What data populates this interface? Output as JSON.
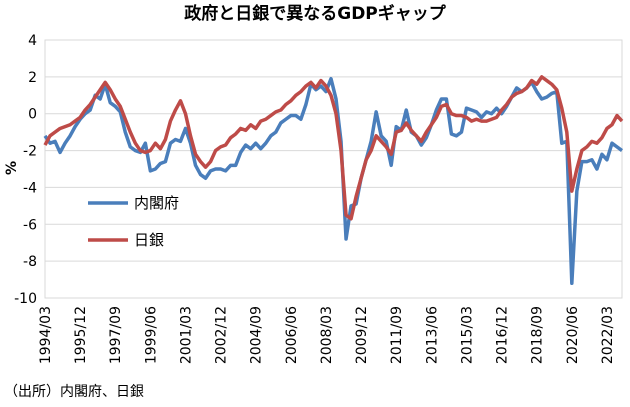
{
  "chart_data": {
    "type": "line",
    "title": "政府と日銀で異なるGDPギャップ",
    "y_label": "%",
    "source": "（出所）内閣府、日銀",
    "categories": [
      "1994/03",
      null,
      null,
      null,
      null,
      null,
      null,
      "1995/12",
      null,
      null,
      null,
      null,
      null,
      null,
      "1997/09",
      null,
      null,
      null,
      null,
      null,
      null,
      "1999/06",
      null,
      null,
      null,
      null,
      null,
      null,
      "2001/03",
      null,
      null,
      null,
      null,
      null,
      null,
      "2002/12",
      null,
      null,
      null,
      null,
      null,
      null,
      "2004/09",
      null,
      null,
      null,
      null,
      null,
      null,
      "2006/06",
      null,
      null,
      null,
      null,
      null,
      null,
      "2008/03",
      null,
      null,
      null,
      null,
      null,
      null,
      "2009/12",
      null,
      null,
      null,
      null,
      null,
      null,
      "2011/09",
      null,
      null,
      null,
      null,
      null,
      null,
      "2013/06",
      null,
      null,
      null,
      null,
      null,
      null,
      "2015/03",
      null,
      null,
      null,
      null,
      null,
      null,
      "2016/12",
      null,
      null,
      null,
      null,
      null,
      null,
      "2018/09",
      null,
      null,
      null,
      null,
      null,
      null,
      "2020/06",
      null,
      null,
      null,
      null,
      null,
      null,
      "2022/03",
      null,
      null,
      null
    ],
    "series": [
      {
        "name": "内閣府",
        "color": "#4a7ebb",
        "values": [
          -1.2,
          -1.6,
          -1.5,
          -2.1,
          -1.6,
          -1.2,
          -0.7,
          -0.3,
          0.0,
          0.2,
          1.0,
          0.8,
          1.6,
          0.6,
          0.4,
          0.1,
          -1.0,
          -1.8,
          -2.0,
          -2.1,
          -1.6,
          -3.1,
          -3.0,
          -2.7,
          -2.6,
          -1.6,
          -1.4,
          -1.5,
          -0.8,
          -1.6,
          -2.8,
          -3.3,
          -3.5,
          -3.1,
          -3.0,
          -3.0,
          -3.1,
          -2.8,
          -2.8,
          -2.1,
          -1.7,
          -1.9,
          -1.6,
          -1.9,
          -1.6,
          -1.2,
          -1.0,
          -0.5,
          -0.3,
          -0.1,
          -0.1,
          -0.3,
          0.5,
          1.6,
          1.3,
          1.5,
          1.2,
          1.9,
          0.8,
          -1.5,
          -6.8,
          -5.0,
          -4.9,
          -3.5,
          -2.5,
          -1.5,
          0.1,
          -1.2,
          -1.5,
          -2.8,
          -0.7,
          -0.9,
          0.2,
          -1.0,
          -1.2,
          -1.7,
          -1.3,
          -0.6,
          0.2,
          0.8,
          0.8,
          -1.1,
          -1.2,
          -1.0,
          0.3,
          0.2,
          0.1,
          -0.2,
          0.1,
          0.0,
          0.3,
          0.0,
          0.4,
          0.9,
          1.4,
          1.2,
          1.4,
          1.7,
          1.2,
          0.8,
          0.9,
          1.1,
          1.2,
          -1.6,
          -1.5,
          -9.2,
          -4.2,
          -2.6,
          -2.6,
          -2.5,
          -3.0,
          -2.2,
          -2.5,
          -1.6,
          -1.8,
          -2.0
        ]
      },
      {
        "name": "日銀",
        "color": "#be4b48",
        "values": [
          -1.7,
          -1.2,
          -1.0,
          -0.8,
          -0.7,
          -0.6,
          -0.4,
          -0.2,
          0.2,
          0.5,
          0.9,
          1.3,
          1.7,
          1.3,
          0.8,
          0.4,
          -0.3,
          -1.0,
          -1.6,
          -2.0,
          -2.1,
          -2.0,
          -1.6,
          -1.9,
          -1.4,
          -0.4,
          0.2,
          0.7,
          0.0,
          -1.2,
          -2.2,
          -2.6,
          -2.9,
          -2.6,
          -2.0,
          -1.8,
          -1.7,
          -1.3,
          -1.1,
          -0.8,
          -0.9,
          -0.6,
          -0.8,
          -0.4,
          -0.3,
          -0.1,
          0.1,
          0.2,
          0.5,
          0.7,
          1.0,
          1.2,
          1.5,
          1.7,
          1.4,
          1.8,
          1.5,
          1.0,
          0.0,
          -2.0,
          -5.5,
          -5.7,
          -4.5,
          -3.5,
          -2.5,
          -2.0,
          -1.2,
          -1.5,
          -1.8,
          -2.2,
          -1.0,
          -0.9,
          -0.5,
          -0.9,
          -1.2,
          -1.5,
          -1.0,
          -0.6,
          -0.2,
          0.4,
          0.5,
          0.0,
          -0.1,
          -0.1,
          -0.2,
          -0.4,
          -0.3,
          -0.4,
          -0.4,
          -0.3,
          -0.2,
          0.2,
          0.5,
          0.9,
          1.1,
          1.2,
          1.4,
          1.8,
          1.6,
          2.0,
          1.8,
          1.6,
          1.3,
          0.3,
          -1.0,
          -4.2,
          -3.0,
          -2.0,
          -1.8,
          -1.5,
          -1.6,
          -1.3,
          -0.8,
          -0.6,
          -0.1,
          -0.4
        ]
      }
    ],
    "ylim": [
      -10,
      4
    ],
    "yticks": [
      -10,
      -8,
      -6,
      -4,
      -2,
      0,
      2,
      4
    ],
    "grid": true
  }
}
